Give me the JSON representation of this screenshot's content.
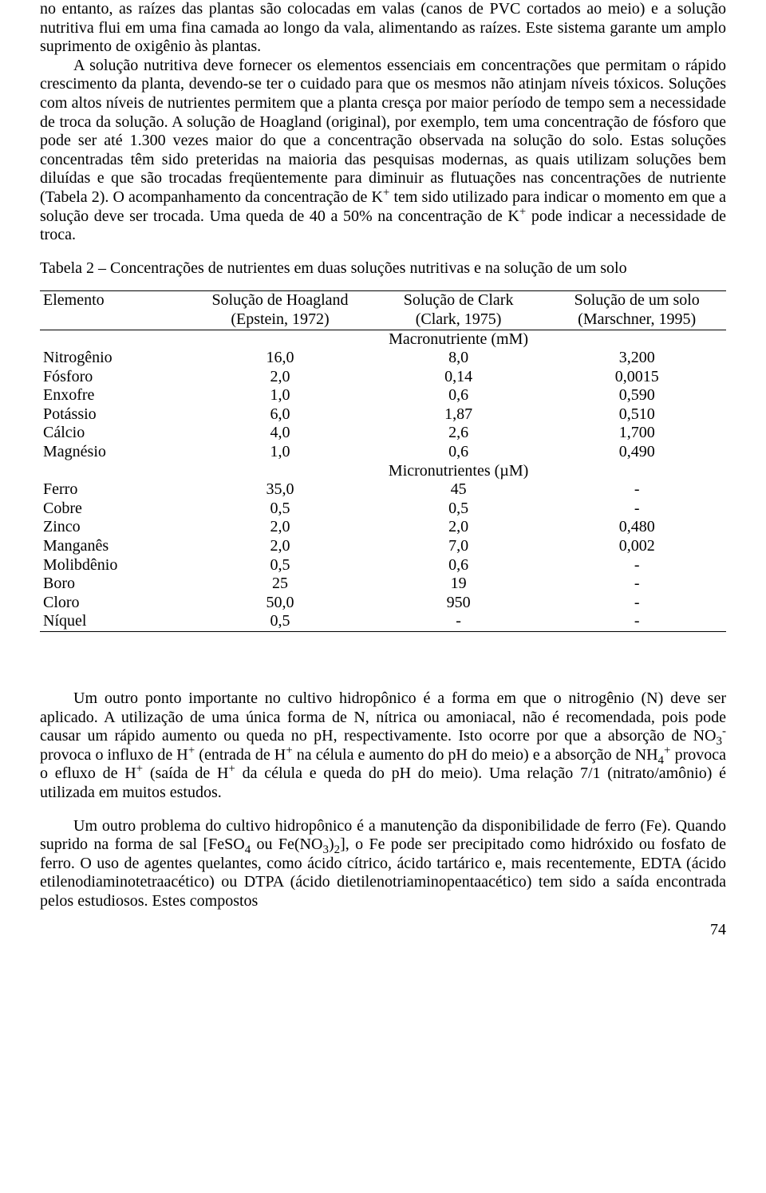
{
  "paragraphs": {
    "p1a": "no entanto, as raízes das plantas são colocadas em valas (canos de PVC cortados ao meio) e a solução nutritiva flui em uma fina camada ao longo da vala, alimentando as raízes. Este sistema garante um amplo suprimento de oxigênio às plantas.",
    "p1b_before": "A solução nutritiva deve fornecer os elementos essenciais em concentrações que permitam o rápido crescimento da planta, devendo-se ter o cuidado para que os mesmos não atinjam níveis tóxicos. Soluções com altos níveis de nutrientes permitem que a planta cresça por maior período de tempo sem a necessidade de troca da solução. A solução de Hoagland (original), por exemplo, tem uma concentração de fósforo que pode ser até 1.300 vezes maior do que a concentração observada na solução do solo. Estas soluções concentradas têm sido preteridas na maioria das pesquisas modernas, as quais utilizam soluções bem diluídas e que são trocadas freqüentemente para diminuir as flutuações nas concentrações de nutriente (Tabela 2).  O acompanhamento da concentração de K",
    "p1b_mid": " tem sido utilizado para indicar o momento em que a solução deve ser trocada. Uma queda de 40 a 50% na concentração de K",
    "p1b_after": " pode indicar a necessidade de troca.",
    "p2_before": "Um outro ponto importante no cultivo hidropônico é a forma em que o nitrogênio (N) deve ser aplicado.  A utilização de uma única forma de N, nítrica ou amoniacal, não é recomendada, pois pode causar um rápido aumento ou queda no pH, respectivamente. Isto ocorre por que a absorção de NO",
    "p2_m1": " provoca o influxo de H",
    "p2_m2": " (entrada de H",
    "p2_m3": " na célula e aumento do pH do meio) e a absorção de NH",
    "p2_m4": " provoca o efluxo de H",
    "p2_m5": " (saída de H",
    "p2_after": " da célula e queda do pH do meio). Uma relação 7/1 (nitrato/amônio) é utilizada em muitos estudos.",
    "p3_before": "Um outro problema do cultivo hidropônico é a manutenção da disponibilidade de ferro (Fe). Quando suprido na forma de sal [FeSO",
    "p3_m1": " ou Fe(NO",
    "p3_m2": ")",
    "p3_after": "], o Fe pode ser precipitado como hidróxido ou fosfato de ferro. O uso de agentes quelantes, como ácido cítrico, ácido tartárico e, mais recentemente, EDTA (ácido etilenodiaminotetraacético) ou DTPA (ácido dietilenotriaminopentaacético) tem sido a saída encontrada pelos estudiosos. Estes compostos"
  },
  "table": {
    "caption": "Tabela 2 – Concentrações de nutrientes em duas soluções nutritivas e na solução de um solo",
    "headers": {
      "element": "Elemento",
      "c1a": "Solução de Hoagland",
      "c1b": "(Epstein, 1972)",
      "c2a": "Solução de Clark",
      "c2b": "(Clark, 1975)",
      "c3a": "Solução de um solo",
      "c3b": "(Marschner, 1995)"
    },
    "section_macro": "Macronutriente (mM)",
    "section_micro": "Micronutrientes (µM)",
    "macro": [
      {
        "el": "Nitrogênio",
        "v1": "16,0",
        "v2": "8,0",
        "v3": "3,200"
      },
      {
        "el": "Fósforo",
        "v1": "2,0",
        "v2": "0,14",
        "v3": "0,0015"
      },
      {
        "el": "Enxofre",
        "v1": "1,0",
        "v2": "0,6",
        "v3": "0,590"
      },
      {
        "el": "Potássio",
        "v1": "6,0",
        "v2": "1,87",
        "v3": "0,510"
      },
      {
        "el": "Cálcio",
        "v1": "4,0",
        "v2": "2,6",
        "v3": "1,700"
      },
      {
        "el": "Magnésio",
        "v1": "1,0",
        "v2": "0,6",
        "v3": "0,490"
      }
    ],
    "micro": [
      {
        "el": "Ferro",
        "v1": "35,0",
        "v2": "45",
        "v3": "-"
      },
      {
        "el": "Cobre",
        "v1": "0,5",
        "v2": "0,5",
        "v3": "-"
      },
      {
        "el": "Zinco",
        "v1": "2,0",
        "v2": "2,0",
        "v3": "0,480"
      },
      {
        "el": "Manganês",
        "v1": "2,0",
        "v2": "7,0",
        "v3": "0,002"
      },
      {
        "el": "Molibdênio",
        "v1": "0,5",
        "v2": "0,6",
        "v3": "-"
      },
      {
        "el": "Boro",
        "v1": "25",
        "v2": "19",
        "v3": "-"
      },
      {
        "el": "Cloro",
        "v1": "50,0",
        "v2": "950",
        "v3": "-"
      },
      {
        "el": "Níquel",
        "v1": "0,5",
        "v2": "-",
        "v3": "-"
      }
    ]
  },
  "page_number": "74"
}
